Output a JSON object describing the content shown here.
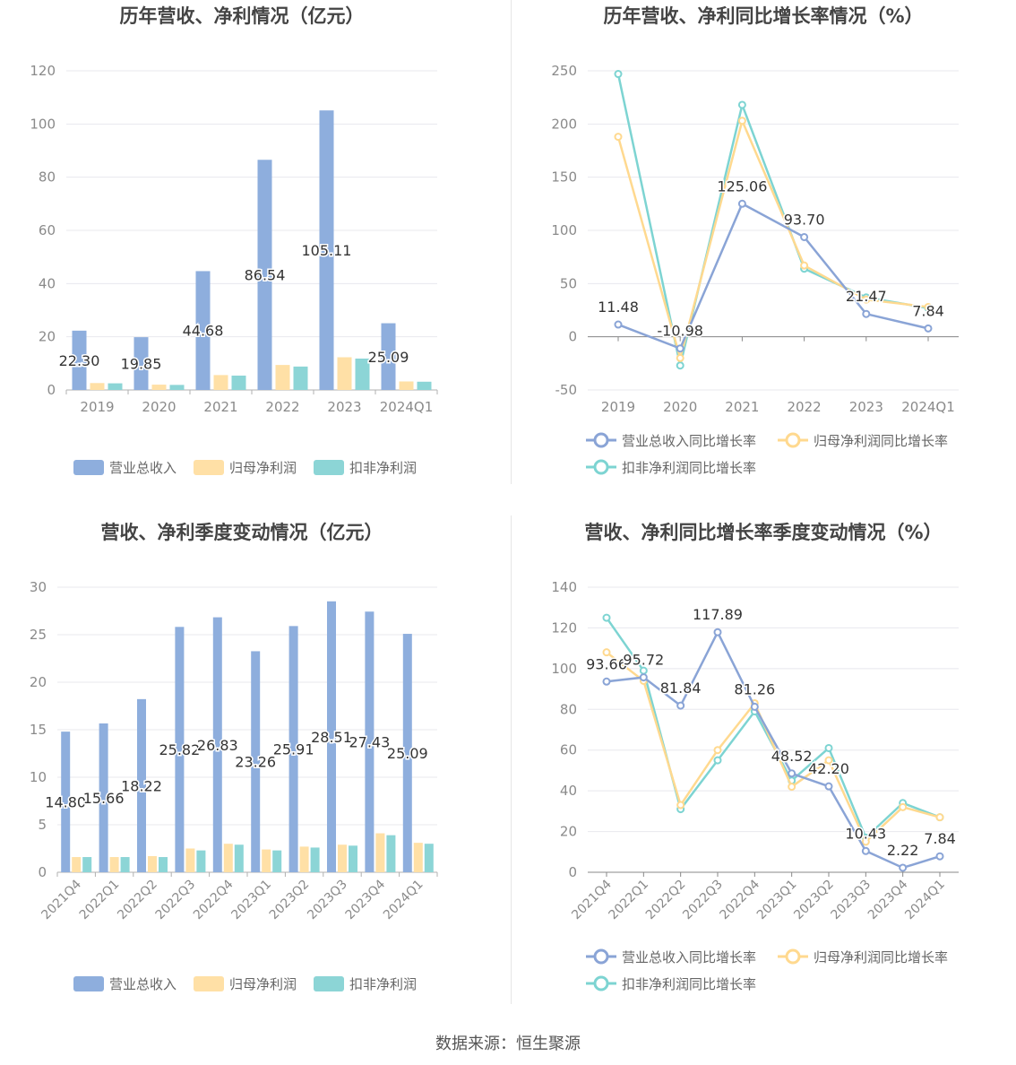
{
  "source_text": "数据来源：恒生聚源",
  "colors": {
    "revenue": "#8eaedd",
    "net_profit": "#ffe0a6",
    "deducted_profit": "#8cd5d6",
    "revenue_line": "#8aa4d6",
    "net_profit_line": "#ffd98f",
    "deducted_profit_line": "#7dd4d2"
  },
  "chart_data": [
    {
      "type": "bar",
      "title": "历年营收、净利情况（亿元）",
      "categories": [
        "2019",
        "2020",
        "2021",
        "2022",
        "2023",
        "2024Q1"
      ],
      "ylim": [
        0,
        120
      ],
      "yticks": [
        0,
        20,
        40,
        60,
        80,
        100,
        120
      ],
      "grid": true,
      "legend_position": "bottom",
      "series": [
        {
          "name": "营业总收入",
          "values": [
            22.3,
            19.85,
            44.68,
            86.54,
            105.11,
            25.09
          ]
        },
        {
          "name": "归母净利润",
          "values": [
            2.6,
            2.0,
            5.6,
            9.4,
            12.3,
            3.2
          ]
        },
        {
          "name": "扣非净利润",
          "values": [
            2.5,
            1.9,
            5.4,
            8.8,
            11.8,
            3.1
          ]
        }
      ],
      "data_labels": [
        "22.30",
        "19.85",
        "44.68",
        "86.54",
        "105.11",
        "25.09"
      ]
    },
    {
      "type": "line",
      "title": "历年营收、净利同比增长率情况（%）",
      "categories": [
        "2019",
        "2020",
        "2021",
        "2022",
        "2023",
        "2024Q1"
      ],
      "ylim": [
        -50,
        250
      ],
      "yticks": [
        -50,
        0,
        50,
        100,
        150,
        200,
        250
      ],
      "grid": true,
      "legend_position": "bottom",
      "series": [
        {
          "name": "营业总收入同比增长率",
          "values": [
            11.48,
            -10.98,
            125.06,
            93.7,
            21.47,
            7.84
          ]
        },
        {
          "name": "归母净利润同比增长率",
          "values": [
            188,
            -20,
            203,
            67,
            35,
            28
          ]
        },
        {
          "name": "扣非净利润同比增长率",
          "values": [
            247,
            -27,
            218,
            64,
            37,
            27
          ]
        }
      ],
      "data_labels": [
        "11.48",
        "-10.98",
        "125.06",
        "93.70",
        "21.47",
        "7.84"
      ]
    },
    {
      "type": "bar",
      "title": "营收、净利季度变动情况（亿元）",
      "categories": [
        "2021Q4",
        "2022Q1",
        "2022Q2",
        "2022Q3",
        "2022Q4",
        "2023Q1",
        "2023Q2",
        "2023Q3",
        "2023Q4",
        "2024Q1"
      ],
      "ylim": [
        0,
        30
      ],
      "yticks": [
        0,
        5,
        10,
        15,
        20,
        25,
        30
      ],
      "grid": true,
      "legend_position": "bottom",
      "series": [
        {
          "name": "营业总收入",
          "values": [
            14.8,
            15.66,
            18.22,
            25.82,
            26.83,
            23.26,
            25.91,
            28.51,
            27.43,
            25.09
          ]
        },
        {
          "name": "归母净利润",
          "values": [
            1.6,
            1.6,
            1.7,
            2.5,
            3.0,
            2.4,
            2.7,
            2.9,
            4.1,
            3.1
          ]
        },
        {
          "name": "扣非净利润",
          "values": [
            1.6,
            1.6,
            1.6,
            2.3,
            2.9,
            2.3,
            2.6,
            2.8,
            3.9,
            3.0
          ]
        }
      ],
      "data_labels": [
        "14.80",
        "15.66",
        "18.22",
        "25.82",
        "26.83",
        "23.26",
        "25.91",
        "28.51",
        "27.43",
        "25.09"
      ]
    },
    {
      "type": "line",
      "title": "营收、净利同比增长率季度变动情况（%）",
      "categories": [
        "2021Q4",
        "2022Q1",
        "2022Q2",
        "2022Q3",
        "2022Q4",
        "2023Q1",
        "2023Q2",
        "2023Q3",
        "2023Q4",
        "2024Q1"
      ],
      "ylim": [
        0,
        140
      ],
      "yticks": [
        0,
        20,
        40,
        60,
        80,
        100,
        120,
        140
      ],
      "grid": true,
      "legend_position": "bottom",
      "series": [
        {
          "name": "营业总收入同比增长率",
          "values": [
            93.66,
            95.72,
            81.84,
            117.89,
            81.26,
            48.52,
            42.2,
            10.43,
            2.22,
            7.84
          ]
        },
        {
          "name": "归母净利润同比增长率",
          "values": [
            108,
            94,
            33,
            60,
            83,
            42,
            55,
            15,
            32,
            27
          ]
        },
        {
          "name": "扣非净利润同比增长率",
          "values": [
            125,
            99,
            31,
            55,
            79,
            45,
            61,
            17,
            34,
            27
          ]
        }
      ],
      "data_labels": [
        "93.66",
        "95.72",
        "81.84",
        "117.89",
        "81.26",
        "48.52",
        "42.20",
        "10.43",
        "2.22",
        "7.84"
      ]
    }
  ]
}
